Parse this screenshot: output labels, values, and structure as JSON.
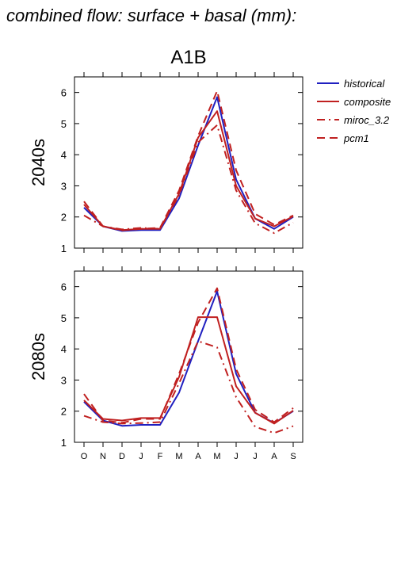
{
  "figure": {
    "title": "combined flow: surface + basal (mm):",
    "scenario": "A1B"
  },
  "legend": [
    {
      "name": "historical",
      "color": "#2020c0",
      "dash": "solid"
    },
    {
      "name": "composite",
      "color": "#c02020",
      "dash": "solid"
    },
    {
      "name": "miroc_3.2",
      "color": "#c02020",
      "dash": "dashdot"
    },
    {
      "name": "pcm1",
      "color": "#c02020",
      "dash": "dash"
    }
  ],
  "chart_data": [
    {
      "type": "line",
      "panel_label": "2040s",
      "categories": [
        "O",
        "N",
        "D",
        "J",
        "F",
        "M",
        "A",
        "M",
        "J",
        "J",
        "A",
        "S"
      ],
      "yticks": [
        1,
        2,
        3,
        4,
        5,
        6
      ],
      "ylim": [
        1,
        6.5
      ],
      "series": [
        {
          "name": "historical",
          "color": "#2020c0",
          "dash": "solid",
          "values": [
            2.3,
            1.7,
            1.55,
            1.58,
            1.58,
            2.6,
            4.3,
            5.85,
            3.2,
            1.95,
            1.62,
            2.0
          ]
        },
        {
          "name": "composite",
          "color": "#c02020",
          "dash": "solid",
          "values": [
            2.4,
            1.7,
            1.58,
            1.62,
            1.62,
            2.75,
            4.55,
            5.4,
            3.0,
            1.95,
            1.7,
            2.02
          ]
        },
        {
          "name": "miroc_3.2",
          "color": "#c02020",
          "dash": "dashdot",
          "values": [
            2.05,
            1.7,
            1.6,
            1.65,
            1.62,
            2.7,
            4.4,
            4.95,
            2.85,
            1.8,
            1.48,
            1.82
          ]
        },
        {
          "name": "pcm1",
          "color": "#c02020",
          "dash": "dash",
          "values": [
            2.5,
            1.7,
            1.57,
            1.62,
            1.65,
            2.85,
            4.6,
            6.05,
            3.5,
            2.1,
            1.75,
            2.05
          ]
        }
      ]
    },
    {
      "type": "line",
      "panel_label": "2080s",
      "categories": [
        "O",
        "N",
        "D",
        "J",
        "F",
        "M",
        "A",
        "M",
        "J",
        "J",
        "A",
        "S"
      ],
      "yticks": [
        1,
        2,
        3,
        4,
        5,
        6
      ],
      "ylim": [
        1,
        6.5
      ],
      "series": [
        {
          "name": "historical",
          "color": "#2020c0",
          "dash": "solid",
          "values": [
            2.3,
            1.7,
            1.53,
            1.56,
            1.56,
            2.6,
            4.25,
            5.85,
            3.2,
            1.95,
            1.62,
            2.0
          ]
        },
        {
          "name": "composite",
          "color": "#c02020",
          "dash": "solid",
          "values": [
            2.35,
            1.75,
            1.7,
            1.78,
            1.78,
            3.1,
            5.02,
            5.02,
            2.8,
            1.95,
            1.6,
            2.02
          ]
        },
        {
          "name": "miroc_3.2",
          "color": "#c02020",
          "dash": "dashdot",
          "values": [
            1.85,
            1.65,
            1.6,
            1.62,
            1.65,
            2.9,
            4.25,
            4.05,
            2.45,
            1.5,
            1.3,
            1.52
          ]
        },
        {
          "name": "pcm1",
          "color": "#c02020",
          "dash": "dash",
          "values": [
            2.55,
            1.7,
            1.63,
            1.75,
            1.75,
            3.2,
            4.85,
            5.95,
            3.35,
            2.05,
            1.65,
            2.1
          ]
        }
      ]
    }
  ]
}
